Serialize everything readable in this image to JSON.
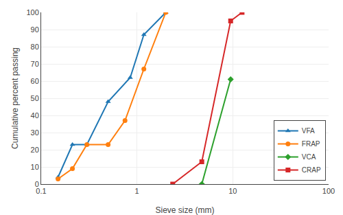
{
  "chart_data": {
    "type": "line",
    "x_label": "Sieve size (mm)",
    "y_label": "Cumulative percent passing",
    "series": [
      {
        "name": "VFA",
        "marker": "triangle-up",
        "x": [
          0.15,
          0.212,
          0.3,
          0.5,
          0.85,
          1.18,
          2.0
        ],
        "values": [
          4,
          23,
          23,
          48,
          62,
          87,
          100
        ]
      },
      {
        "name": "FRAP",
        "marker": "circle",
        "x": [
          0.15,
          0.212,
          0.3,
          0.5,
          0.75,
          1.18,
          2.0
        ],
        "values": [
          3,
          9,
          23,
          23,
          37,
          67,
          100
        ]
      },
      {
        "name": "VCA",
        "marker": "diamond",
        "x": [
          4.75,
          9.5
        ],
        "values": [
          0,
          61
        ]
      },
      {
        "name": "CRAP",
        "marker": "square",
        "x": [
          2.36,
          4.75,
          9.5,
          12.5
        ],
        "values": [
          0,
          13,
          95,
          100
        ]
      }
    ],
    "log": "x",
    "xlim": [
      0.1,
      100
    ],
    "xticks": [
      0.1,
      1,
      10,
      100
    ],
    "ylim": [
      0,
      100
    ],
    "yticks": [
      0,
      10,
      20,
      30,
      40,
      50,
      60,
      70,
      80,
      90,
      100
    ],
    "grid": true,
    "legend": "lower right"
  }
}
